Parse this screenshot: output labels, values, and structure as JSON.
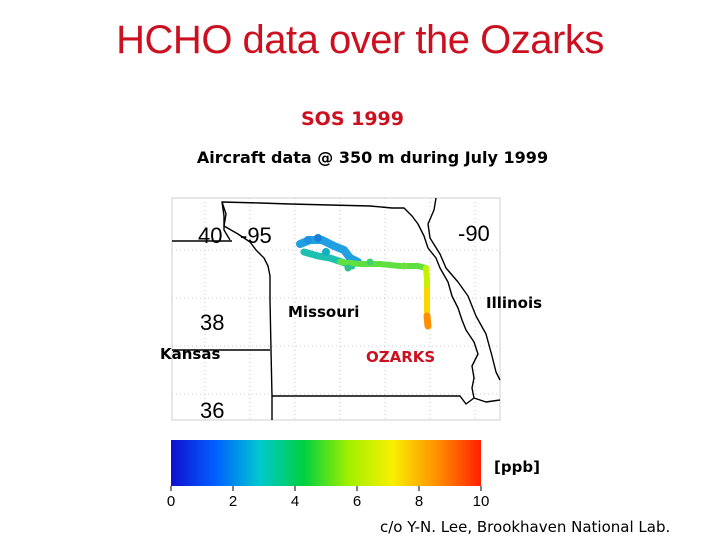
{
  "title": "HCHO data over the Ozarks",
  "subtitle": "SOS 1999",
  "caption": "Aircraft data @ 350 m during July 1999",
  "map": {
    "latitude_labels": [
      "40",
      "38",
      "36"
    ],
    "longitude_labels": [
      "-95",
      "-90"
    ],
    "state_labels": {
      "missouri": "Missouri",
      "illinois": "Illinois",
      "kansas": "Kansas"
    },
    "region_label": "OZARKS"
  },
  "colorbar": {
    "unit": "[ppb]",
    "ticks": [
      "0",
      "2",
      "4",
      "6",
      "8",
      "10"
    ],
    "min": 0,
    "max": 10,
    "colors": [
      "#1010d0",
      "#0060ff",
      "#00c8d0",
      "#00d040",
      "#a0f000",
      "#f8f000",
      "#ff9000",
      "#ff2000"
    ]
  },
  "credit": "c/o Y-N. Lee, Brookhaven National Lab."
}
